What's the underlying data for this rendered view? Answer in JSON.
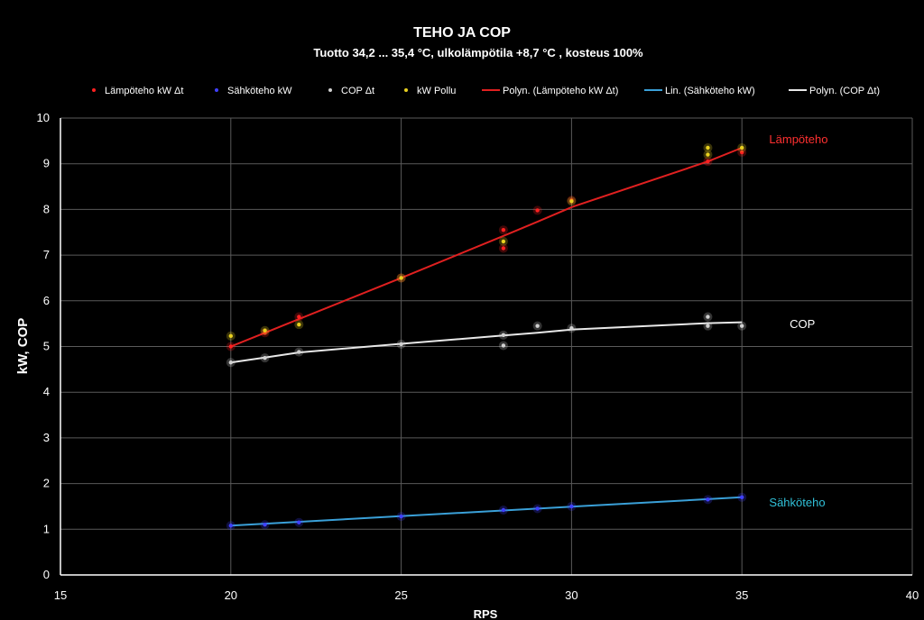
{
  "chart_data": {
    "type": "scatter",
    "title": "TEHO JA COP",
    "subtitle": "Tuotto 34,2 ... 35,4 °C, ulkolämpötila +8,7 °C ,  kosteus 100%",
    "xlabel": "RPS",
    "ylabel": "kW, COP",
    "xlim": [
      15,
      40
    ],
    "ylim": [
      0,
      10
    ],
    "xticks": [
      15,
      20,
      25,
      30,
      35,
      40
    ],
    "yticks": [
      0,
      1,
      2,
      3,
      4,
      5,
      6,
      7,
      8,
      9,
      10
    ],
    "grid": true,
    "legend_position": "top",
    "series": [
      {
        "name": "Lämpöteho kW Δt",
        "kind": "points",
        "color": "#ff2020",
        "points": [
          [
            20,
            5.0
          ],
          [
            21,
            5.3
          ],
          [
            22,
            5.65
          ],
          [
            25,
            6.5
          ],
          [
            28,
            7.55
          ],
          [
            28,
            7.15
          ],
          [
            29,
            7.98
          ],
          [
            30,
            8.2
          ],
          [
            34,
            9.05
          ],
          [
            35,
            9.25
          ]
        ]
      },
      {
        "name": "Sähköteho kW",
        "kind": "points",
        "color": "#4040ff",
        "points": [
          [
            20,
            1.08
          ],
          [
            21,
            1.1
          ],
          [
            22,
            1.15
          ],
          [
            25,
            1.28
          ],
          [
            28,
            1.42
          ],
          [
            29,
            1.45
          ],
          [
            30,
            1.5
          ],
          [
            34,
            1.65
          ],
          [
            35,
            1.7
          ]
        ]
      },
      {
        "name": "COP Δt",
        "kind": "points",
        "color": "#d0d0d0",
        "points": [
          [
            20,
            4.65
          ],
          [
            21,
            4.75
          ],
          [
            22,
            4.88
          ],
          [
            25,
            5.05
          ],
          [
            28,
            5.25
          ],
          [
            28,
            5.02
          ],
          [
            29,
            5.45
          ],
          [
            30,
            5.4
          ],
          [
            34,
            5.65
          ],
          [
            34,
            5.45
          ],
          [
            35,
            5.45
          ]
        ]
      },
      {
        "name": "kW Pollu",
        "kind": "points",
        "color": "#e8d020",
        "points": [
          [
            20,
            5.23
          ],
          [
            21,
            5.35
          ],
          [
            22,
            5.48
          ],
          [
            25,
            6.5
          ],
          [
            28,
            7.3
          ],
          [
            30,
            8.18
          ],
          [
            34,
            9.35
          ],
          [
            34,
            9.2
          ],
          [
            35,
            9.35
          ]
        ]
      },
      {
        "name": "Polyn. (Lämpöteho kW Δt)",
        "kind": "line",
        "color": "#e02020",
        "points": [
          [
            20,
            5.0
          ],
          [
            21,
            5.3
          ],
          [
            22,
            5.6
          ],
          [
            25,
            6.5
          ],
          [
            28,
            7.42
          ],
          [
            29,
            7.73
          ],
          [
            30,
            8.05
          ],
          [
            34,
            9.05
          ],
          [
            35,
            9.35
          ]
        ]
      },
      {
        "name": "Lin. (Sähköteho kW)",
        "kind": "line",
        "color": "#3aa0d8",
        "points": [
          [
            20,
            1.08
          ],
          [
            35,
            1.7
          ]
        ]
      },
      {
        "name": "Polyn. (COP Δt)",
        "kind": "line",
        "color": "#e8e8e8",
        "points": [
          [
            20,
            4.65
          ],
          [
            21,
            4.76
          ],
          [
            22,
            4.87
          ],
          [
            25,
            5.06
          ],
          [
            28,
            5.24
          ],
          [
            29,
            5.3
          ],
          [
            30,
            5.37
          ],
          [
            34,
            5.51
          ],
          [
            35,
            5.53
          ]
        ]
      }
    ],
    "annotations": [
      {
        "text": "Lämpöteho",
        "x": 35.8,
        "y": 9.45,
        "color": "#ff3030"
      },
      {
        "text": "COP",
        "x": 36.4,
        "y": 5.4,
        "color": "#ffffff"
      },
      {
        "text": "Sähköteho",
        "x": 35.8,
        "y": 1.5,
        "color": "#30c0d8"
      }
    ]
  }
}
